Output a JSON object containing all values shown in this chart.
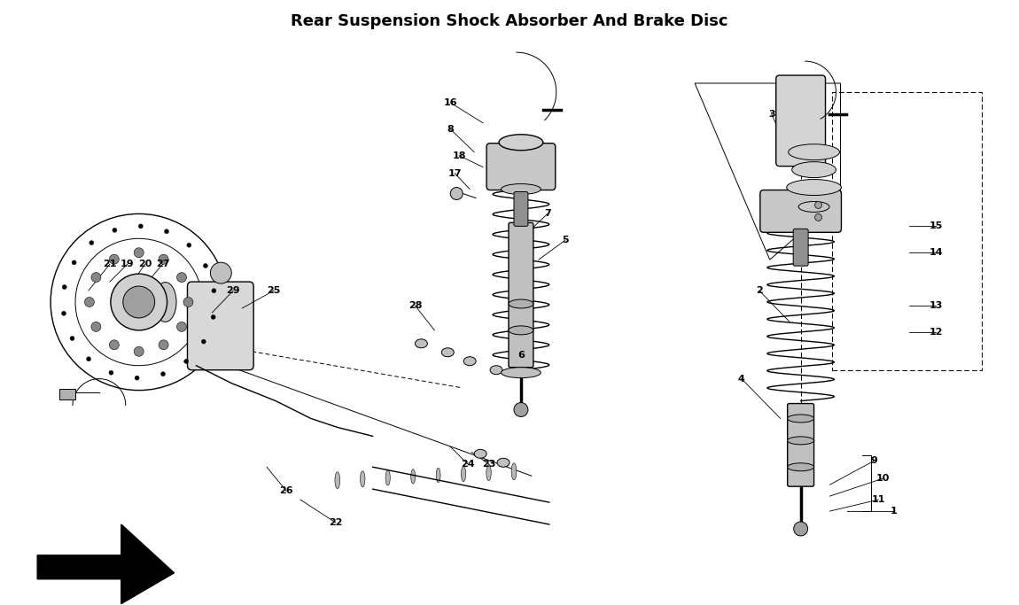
{
  "title": "Rear Suspension Shock Absorber And Brake Disc",
  "background_color": "#ffffff",
  "line_color": "#000000",
  "fig_width": 11.5,
  "fig_height": 6.83,
  "dpi": 100
}
